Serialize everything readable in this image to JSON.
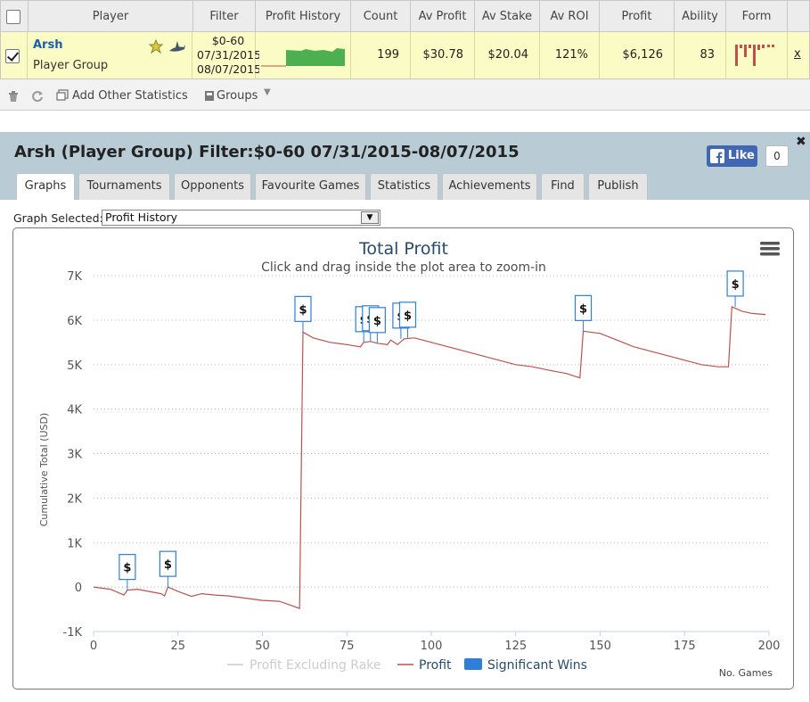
{
  "table": {
    "headers": [
      "Player",
      "Filter",
      "Profit History",
      "Count",
      "Av Profit",
      "Av Stake",
      "Av ROI",
      "Profit",
      "Ability",
      "Form"
    ],
    "row": {
      "player_name": "Arsh",
      "player_sub": "Player Group",
      "filter_lines": [
        "$0-60",
        "07/31/2015",
        "08/07/2015"
      ],
      "count": "199",
      "av_profit": "$30.78",
      "av_stake": "$20.04",
      "av_roi": "121%",
      "profit": "$6,126",
      "ability": "83",
      "remove_label": "x"
    }
  },
  "toolbar": {
    "add_stats_label": "Add Other Statistics",
    "groups_label": "Groups"
  },
  "panel": {
    "title": "Arsh (Player Group) Filter:$0-60 07/31/2015-08/07/2015",
    "like_label": "Like",
    "like_count": "0",
    "tabs": [
      "Graphs",
      "Tournaments",
      "Opponents",
      "Favourite Games",
      "Statistics",
      "Achievements",
      "Find",
      "Publish"
    ],
    "active_tab": "Graphs",
    "graph_selected_label": "Graph Selected:",
    "graph_selected_value": "Profit History"
  },
  "colors": {
    "profit_line": "#b85450",
    "significant_wins": "#2f7ed8",
    "row_highlight": "#fbfbc5",
    "panel_header": "#b9ccd6",
    "link_blue": "#1a5fa6",
    "sparkline_green": "#4caf50",
    "form_bar": "#c0504d"
  },
  "icons": [
    "checkbox-icon",
    "award-icon",
    "shark-icon",
    "trash-icon",
    "refresh-icon",
    "add-window-icon",
    "groups-icon",
    "facebook-icon",
    "menu-icon",
    "dollar-flag-icon"
  ],
  "chart_data": {
    "type": "line",
    "title": "Total Profit",
    "subtitle": "Click and drag inside the plot area to zoom-in",
    "xlabel": "No. Games",
    "ylabel": "Cumulative Total (USD)",
    "xlim": [
      0,
      200
    ],
    "ylim": [
      -1000,
      7000
    ],
    "x_ticks": [
      "0",
      "25",
      "50",
      "75",
      "100",
      "125",
      "150",
      "175",
      "200"
    ],
    "y_ticks": [
      "-1K",
      "0",
      "1K",
      "2K",
      "3K",
      "4K",
      "5K",
      "6K",
      "7K"
    ],
    "legend": [
      "Profit Excluding Rake",
      "Profit",
      "Significant Wins"
    ],
    "grid": "horizontal dotted",
    "legend_placement": "bottom-center",
    "series": [
      {
        "name": "Profit",
        "points": [
          [
            0,
            0
          ],
          [
            5,
            -50
          ],
          [
            9,
            -180
          ],
          [
            10,
            -70
          ],
          [
            13,
            -50
          ],
          [
            20,
            -150
          ],
          [
            21,
            -200
          ],
          [
            22,
            0
          ],
          [
            25,
            -100
          ],
          [
            29,
            -210
          ],
          [
            32,
            -150
          ],
          [
            36,
            -180
          ],
          [
            40,
            -200
          ],
          [
            45,
            -250
          ],
          [
            50,
            -300
          ],
          [
            55,
            -320
          ],
          [
            61,
            -480
          ],
          [
            62,
            5730
          ],
          [
            65,
            5600
          ],
          [
            70,
            5500
          ],
          [
            75,
            5450
          ],
          [
            79,
            5400
          ],
          [
            80,
            5500
          ],
          [
            82,
            5520
          ],
          [
            84,
            5480
          ],
          [
            87,
            5450
          ],
          [
            88,
            5550
          ],
          [
            90,
            5450
          ],
          [
            92,
            5580
          ],
          [
            95,
            5600
          ],
          [
            100,
            5500
          ],
          [
            105,
            5400
          ],
          [
            110,
            5300
          ],
          [
            115,
            5200
          ],
          [
            120,
            5100
          ],
          [
            125,
            5000
          ],
          [
            130,
            4950
          ],
          [
            135,
            4870
          ],
          [
            140,
            4800
          ],
          [
            144,
            4700
          ],
          [
            145,
            5750
          ],
          [
            150,
            5700
          ],
          [
            155,
            5550
          ],
          [
            160,
            5400
          ],
          [
            165,
            5300
          ],
          [
            170,
            5200
          ],
          [
            175,
            5100
          ],
          [
            180,
            5000
          ],
          [
            185,
            4950
          ],
          [
            188,
            4950
          ],
          [
            189,
            6300
          ],
          [
            192,
            6200
          ],
          [
            195,
            6150
          ],
          [
            199,
            6126
          ]
        ]
      },
      {
        "name": "Significant Wins",
        "markers": [
          [
            10,
            -70
          ],
          [
            22,
            0
          ],
          [
            62,
            5730
          ],
          [
            80,
            5500
          ],
          [
            82,
            5520
          ],
          [
            84,
            5480
          ],
          [
            91,
            5580
          ],
          [
            93,
            5600
          ],
          [
            145,
            5750
          ],
          [
            190,
            6300
          ]
        ],
        "symbol": "$"
      }
    ]
  }
}
